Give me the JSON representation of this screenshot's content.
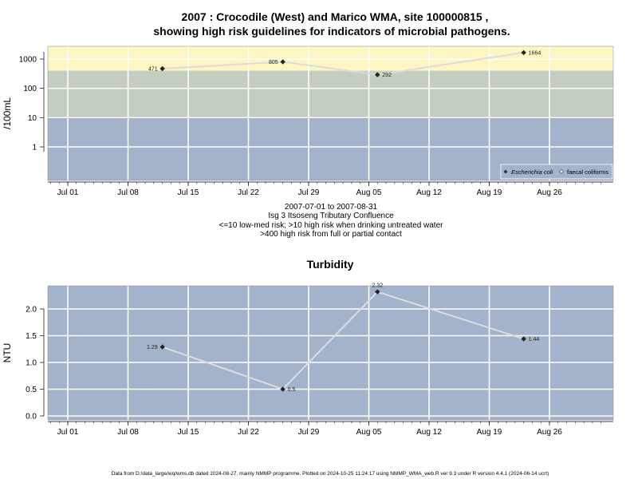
{
  "header": {
    "title_line1": "2007 : Crocodile (West) and Marico WMA, site 100000815 ,",
    "title_line2": "showing high risk guidelines for indicators of microbial pathogens."
  },
  "subtitle": {
    "line1": "2007-07-01 to 2007-08-31",
    "line2": "Isg 3 Itsoseng Tributary Confluence",
    "line3": "<=10 low-med risk; >10 high risk when drinking untreated water",
    "line4": ">400 high risk from full or partial contact"
  },
  "footer": {
    "text": "Data from D:/data_large/wq/wms.db dated 2024-08-27, mainly NMMP programme. Plotted on 2024-10-25 11:24:17 using NMMP_WMA_web.R ver 9.3 under R version 4.4.1 (2024-06-14 ucrt)"
  },
  "colors": {
    "band_high_contact": "#fdf6c3",
    "band_high_drinking": "#c3cdc0",
    "band_low": "#a2b3cb",
    "line": "#dcdcdc",
    "grid": "#ffffff"
  },
  "chart_data": [
    {
      "type": "line",
      "title": "",
      "xlabel": "",
      "ylabel": "/100mL",
      "yscale": "log",
      "x_ticks": [
        "Jul 01",
        "Jul 08",
        "Jul 15",
        "Jul 22",
        "Jul 29",
        "Aug 05",
        "Aug 12",
        "Aug 19",
        "Aug 26"
      ],
      "y_ticks": [
        "1000",
        "100",
        "10",
        "1"
      ],
      "risk_bands": [
        {
          "from": 400,
          "to": 2500,
          "meaning": "high risk from full or partial contact"
        },
        {
          "from": 10,
          "to": 400,
          "meaning": "high risk when drinking untreated water"
        },
        {
          "from": 0.1,
          "to": 10,
          "meaning": "low-med risk"
        }
      ],
      "legend": {
        "placement": "bottom-right",
        "entries": [
          "Escherichia coli",
          "faecal coliforms"
        ]
      },
      "series": [
        {
          "name": "Escherichia coli",
          "x": [
            "2007-07-12",
            "2007-07-26",
            "2007-08-06",
            "2007-08-23"
          ],
          "values": [
            471,
            805,
            292,
            1664
          ],
          "labels": [
            "471",
            "805",
            "292",
            "1664"
          ]
        }
      ]
    },
    {
      "type": "line",
      "title": "Turbidity",
      "xlabel": "",
      "ylabel": "NTU",
      "ylim": [
        0,
        2.4
      ],
      "x_ticks": [
        "Jul 01",
        "Jul 08",
        "Jul 15",
        "Jul 22",
        "Jul 29",
        "Aug 05",
        "Aug 12",
        "Aug 19",
        "Aug 26"
      ],
      "y_ticks": [
        "0.0",
        "0.5",
        "1.0",
        "1.5",
        "2.0"
      ],
      "series": [
        {
          "x": [
            "2007-07-12",
            "2007-07-26",
            "2007-08-06",
            "2007-08-23"
          ],
          "values": [
            1.29,
            0.5,
            2.32,
            1.44
          ],
          "labels": [
            "1.29",
            "0.5",
            "2.32",
            "1.44"
          ]
        }
      ]
    }
  ]
}
